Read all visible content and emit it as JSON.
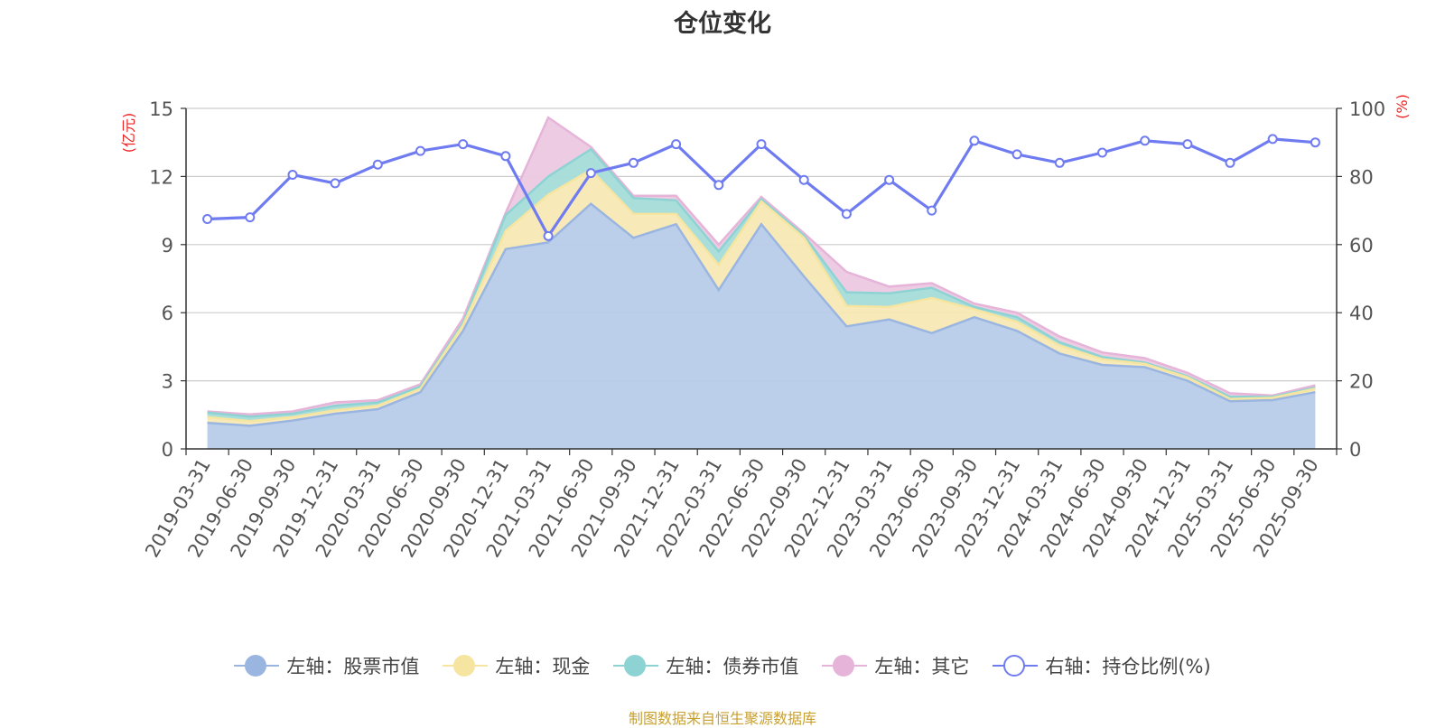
{
  "chart_data": {
    "type": "area",
    "title": "仓位变化",
    "source": "制图数据来自恒生聚源数据库",
    "left_axis_unit": "(亿元)",
    "right_axis_unit": "(%)",
    "left_ylim": [
      0,
      15
    ],
    "left_ticks": [
      "0",
      "3",
      "6",
      "9",
      "12",
      "15"
    ],
    "right_ylim": [
      0,
      100
    ],
    "right_ticks": [
      "0",
      "20",
      "40",
      "60",
      "80",
      "100"
    ],
    "categories": [
      "2019-03-31",
      "2019-06-30",
      "2019-09-30",
      "2019-12-31",
      "2020-03-31",
      "2020-06-30",
      "2020-09-30",
      "2020-12-31",
      "2021-03-31",
      "2021-06-30",
      "2021-09-30",
      "2021-12-31",
      "2022-03-31",
      "2022-06-30",
      "2022-09-30",
      "2022-12-31",
      "2023-03-31",
      "2023-06-30",
      "2023-09-30",
      "2023-12-31",
      "2024-03-31",
      "2024-06-30",
      "2024-09-30",
      "2024-12-31",
      "2025-03-31",
      "2025-06-30",
      "2025-09-30"
    ],
    "series": [
      {
        "name": "左轴：股票市值",
        "axis": "left",
        "color": "#9ab6e0",
        "fill": "#b7cbe9",
        "values": [
          1.15,
          1.02,
          1.25,
          1.55,
          1.75,
          2.5,
          5.2,
          8.8,
          9.1,
          10.8,
          9.3,
          9.9,
          7.0,
          9.9,
          7.6,
          5.4,
          5.7,
          5.1,
          5.8,
          5.2,
          4.2,
          3.7,
          3.6,
          3.0,
          2.1,
          2.15,
          2.5
        ]
      },
      {
        "name": "左轴：现金",
        "axis": "left",
        "color": "#f5e5a0",
        "fill": "#f8e9b4",
        "values": [
          0.25,
          0.2,
          0.15,
          0.15,
          0.15,
          0.15,
          0.25,
          0.8,
          2.1,
          1.5,
          1.05,
          0.45,
          1.1,
          1.0,
          1.7,
          0.9,
          0.55,
          1.55,
          0.35,
          0.4,
          0.35,
          0.25,
          0.15,
          0.15,
          0.1,
          0.1,
          0.15
        ]
      },
      {
        "name": "左轴：债券市值",
        "axis": "left",
        "color": "#8ed3d3",
        "fill": "#a5dcd9",
        "values": [
          0.2,
          0.2,
          0.15,
          0.2,
          0.15,
          0.1,
          0.1,
          0.7,
          0.8,
          0.9,
          0.7,
          0.6,
          0.6,
          0.1,
          0.1,
          0.6,
          0.6,
          0.45,
          0.1,
          0.2,
          0.15,
          0.1,
          0.05,
          0.05,
          0.1,
          0.05,
          0.05
        ]
      },
      {
        "name": "左轴：其它",
        "axis": "left",
        "color": "#e6b4d8",
        "fill": "#ecc9e2",
        "values": [
          0.05,
          0.1,
          0.1,
          0.15,
          0.1,
          0.1,
          0.2,
          0.1,
          2.6,
          0.1,
          0.1,
          0.2,
          0.3,
          0.1,
          0.1,
          0.9,
          0.3,
          0.2,
          0.15,
          0.2,
          0.25,
          0.2,
          0.2,
          0.15,
          0.15,
          0.05,
          0.1
        ]
      },
      {
        "name": "右轴：持仓比例(%)",
        "axis": "right",
        "color": "#6f7bf0",
        "values": [
          67.5,
          68,
          80.5,
          78,
          83.5,
          87.5,
          89.5,
          86,
          62.5,
          81,
          84,
          89.5,
          77.5,
          89.5,
          79,
          69,
          79,
          70,
          90.5,
          86.5,
          84,
          87,
          90.5,
          89.5,
          84,
          91,
          90
        ]
      }
    ]
  }
}
